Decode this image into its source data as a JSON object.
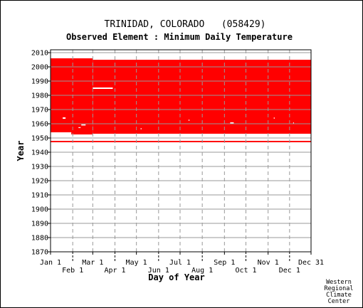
{
  "chart_data": {
    "type": "heatmap",
    "title": "TRINIDAD, COLORADO   (058429)",
    "subtitle": "Observed Element : Minimum Daily Temperature",
    "xlabel": "Day of Year",
    "ylabel": "Year",
    "xlim": [
      1,
      365
    ],
    "ylim": [
      1870,
      2012
    ],
    "y_ticks": [
      1870,
      1880,
      1890,
      1900,
      1910,
      1920,
      1930,
      1940,
      1950,
      1960,
      1970,
      1980,
      1990,
      2000,
      2010
    ],
    "x_ticks_row1": [
      {
        "label": "Jan 1",
        "day": 1
      },
      {
        "label": "Mar 1",
        "day": 60
      },
      {
        "label": "May 1",
        "day": 121
      },
      {
        "label": "Jul 1",
        "day": 182
      },
      {
        "label": "Sep 1",
        "day": 244
      },
      {
        "label": "Nov 1",
        "day": 305
      },
      {
        "label": "Dec 31",
        "day": 365
      }
    ],
    "x_ticks_row2": [
      {
        "label": "Feb 1",
        "day": 32
      },
      {
        "label": "Apr 1",
        "day": 91
      },
      {
        "label": "Jun 1",
        "day": 152
      },
      {
        "label": "Aug 1",
        "day": 213
      },
      {
        "label": "Oct 1",
        "day": 274
      },
      {
        "label": "Dec 1",
        "day": 335
      }
    ],
    "data_color": "#ff0000",
    "grid": true,
    "coverage": [
      {
        "day_start": 1,
        "day_end": 365,
        "year_start": 1947,
        "year_end": 1948
      },
      {
        "day_start": 1,
        "day_end": 60,
        "year_start": 1954,
        "year_end": 2006
      },
      {
        "day_start": 60,
        "day_end": 365,
        "year_start": 1953,
        "year_end": 2005
      },
      {
        "day_start": 30,
        "day_end": 60,
        "year_start": 1952.5,
        "year_end": 1954
      }
    ],
    "gaps": [
      {
        "day_start": 60,
        "day_end": 88,
        "year_start": 1984.5,
        "year_end": 1985.5
      },
      {
        "day_start": 18,
        "day_end": 22,
        "year_start": 1963.5,
        "year_end": 1964.5
      },
      {
        "day_start": 44,
        "day_end": 50,
        "year_start": 1958.8,
        "year_end": 1959.6
      },
      {
        "day_start": 40,
        "day_end": 43,
        "year_start": 1957,
        "year_end": 1957.6
      },
      {
        "day_start": 252,
        "day_end": 257,
        "year_start": 1960,
        "year_end": 1961
      },
      {
        "day_start": 127,
        "day_end": 128,
        "year_start": 1956,
        "year_end": 1957
      },
      {
        "day_start": 194,
        "day_end": 195,
        "year_start": 1962,
        "year_end": 1963
      },
      {
        "day_start": 313,
        "day_end": 314,
        "year_start": 1963.5,
        "year_end": 1964.5
      },
      {
        "day_start": 340,
        "day_end": 341,
        "year_start": 1960,
        "year_end": 1961
      }
    ]
  },
  "credit": [
    "Western",
    "Regional",
    "Climate",
    "Center"
  ]
}
